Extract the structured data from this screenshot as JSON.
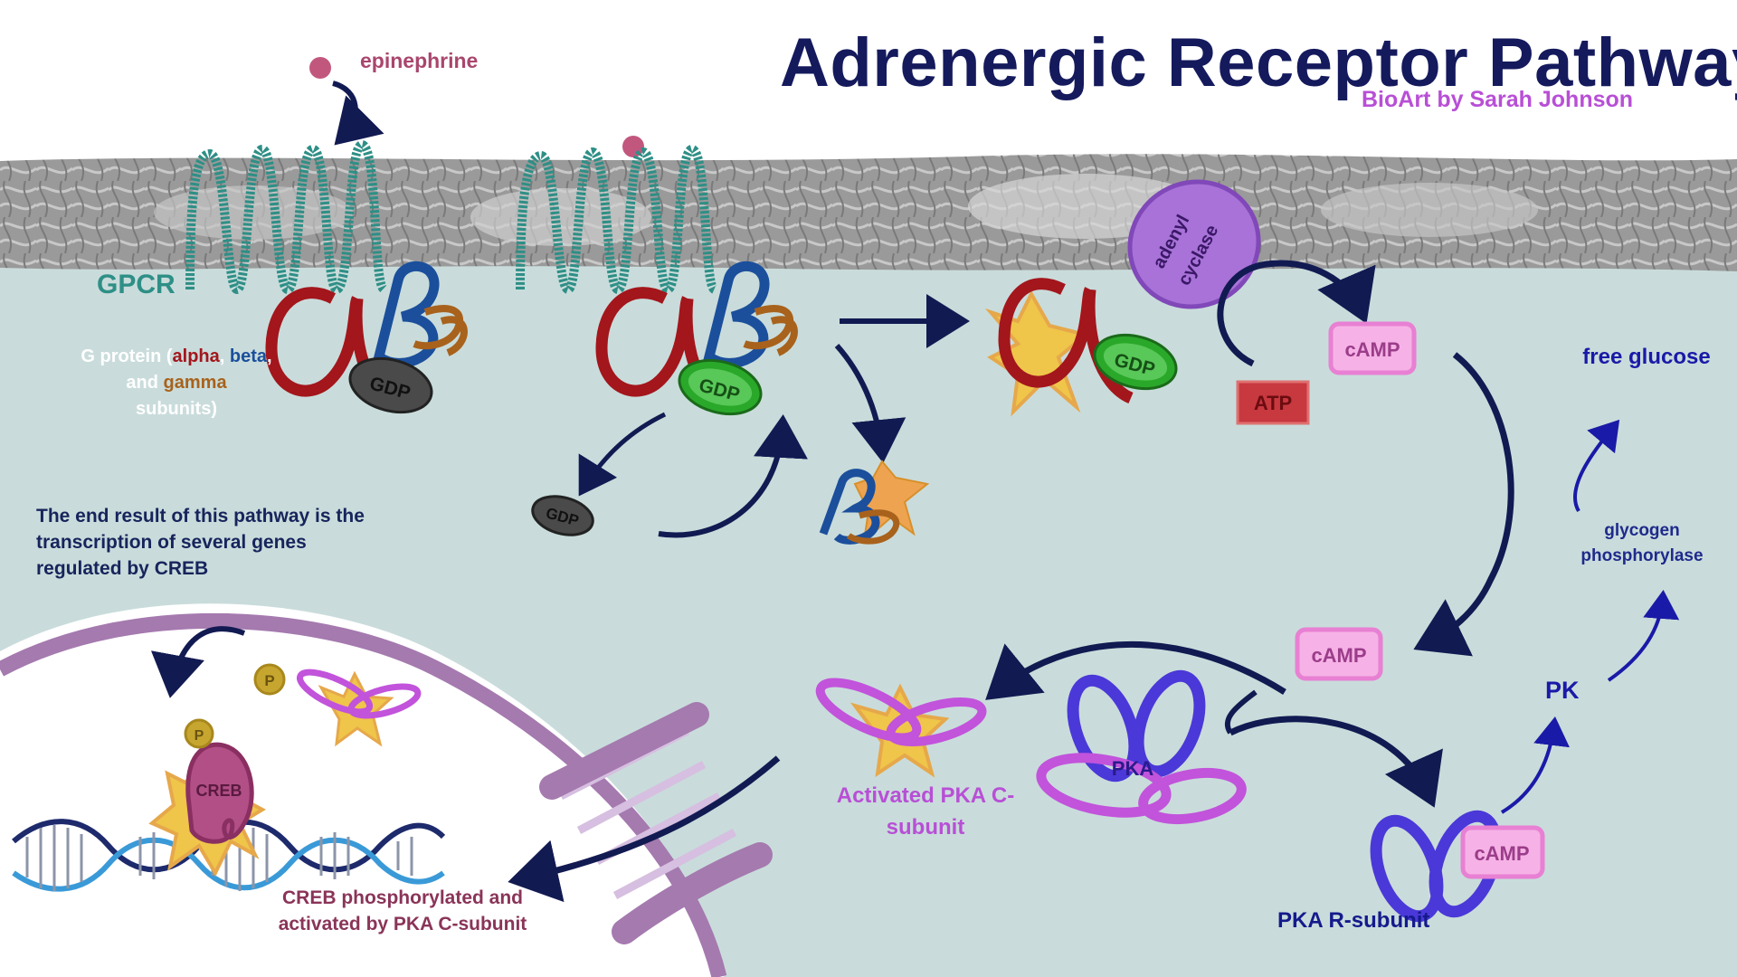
{
  "title": "Adrenergic Receptor Pathway",
  "credit": "BioArt by Sarah Johnson",
  "labels": {
    "epinephrine": "epinephrine",
    "gpcr": "GPCR",
    "g_protein_prefix": "G protein (",
    "alpha": "alpha",
    "comma": ",",
    "beta": "beta",
    "and": ", and ",
    "gamma": "gamma",
    "subunits": "subunits)",
    "gdp": "GDP",
    "adenyl_cyclase_line1": "adenyl",
    "adenyl_cyclase_line2": "cyclase",
    "atp": "ATP",
    "camp": "cAMP",
    "free_glucose": "free glucose",
    "glycogen_phosphorylase": "glycogen phosphorylase",
    "pk": "PK",
    "pka": "PKA",
    "activated_pka": "Activated PKA C-subunit",
    "pka_r_subunit": "PKA R-subunit",
    "end_result": "The end result of this pathway is the transcription of several genes regulated by CREB",
    "creb": "CREB",
    "phosphate": "P",
    "creb_caption": "CREB phosphorylated and activated by PKA C-subunit"
  },
  "colors": {
    "title": "#141a5c",
    "credit": "#b84fd6",
    "cytoplasm": "#c9dcdb",
    "membrane": "#8e8e8e",
    "gpcr": "#2e8f86",
    "alpha": "#a3161c",
    "beta": "#1b4f9c",
    "gamma": "#a8621c",
    "gdp_grey": "#4a4a4a",
    "gdp_green": "#2aa82a",
    "adenyl_cyclase": "#9b5fce",
    "camp": "#e880d3",
    "atp": "#c8383f",
    "pka": "#4b38d8",
    "pka_c": "#c253db",
    "arrow": "#121a52",
    "nucleus": "#a57aaf",
    "creb": "#b24f86"
  }
}
